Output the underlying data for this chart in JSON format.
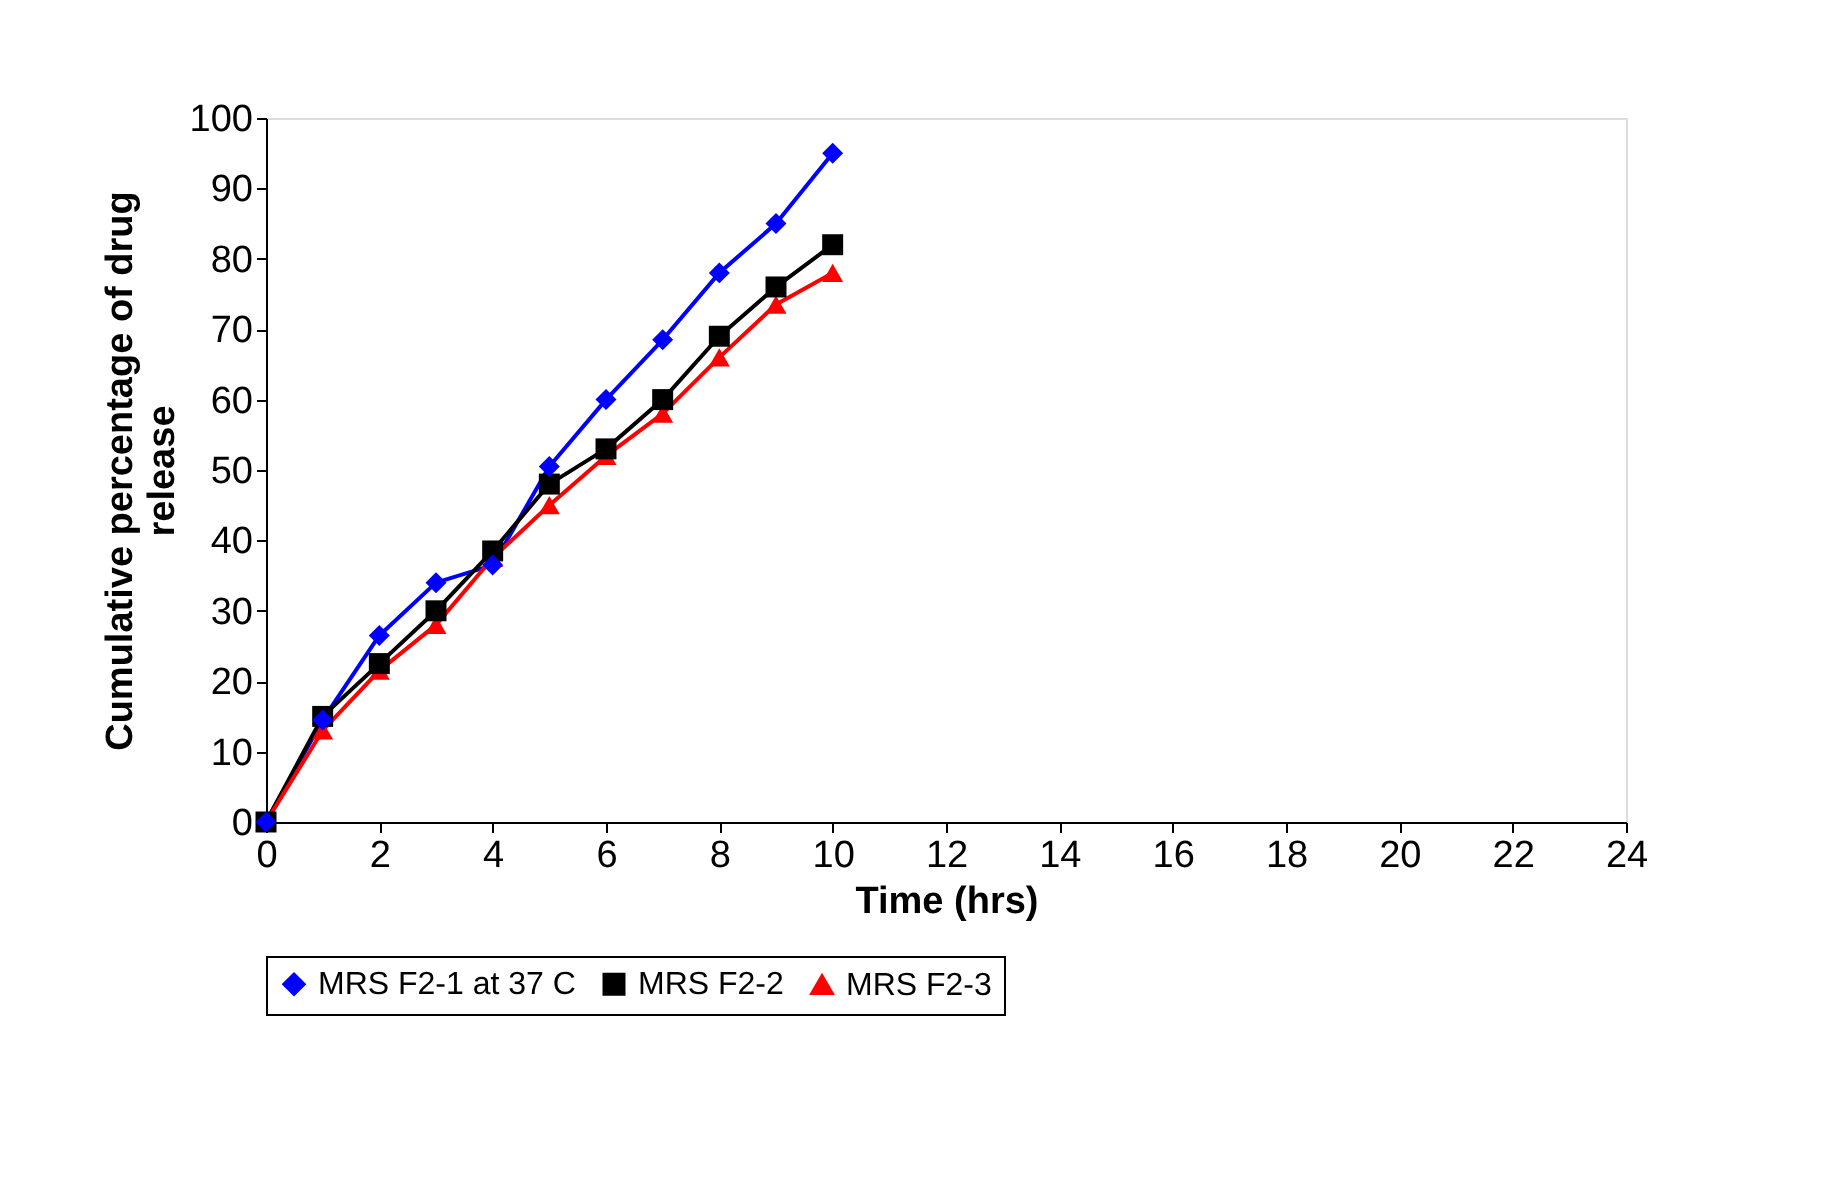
{
  "chart_data": {
    "type": "line",
    "xlabel": "Time (hrs)",
    "ylabel": "Cumulative percentage of drug release",
    "x": [
      0,
      1,
      2,
      3,
      4,
      5,
      6,
      7,
      8,
      9,
      10
    ],
    "xlim": [
      0,
      24
    ],
    "xticks": [
      0,
      2,
      4,
      6,
      8,
      10,
      12,
      14,
      16,
      18,
      20,
      22,
      24
    ],
    "ylim": [
      0,
      100
    ],
    "yticks": [
      0,
      10,
      20,
      30,
      40,
      50,
      60,
      70,
      80,
      90,
      100
    ],
    "grid": false,
    "legend": "bottom",
    "series": [
      {
        "name": "MRS F2-1 at 37 C",
        "color": "#0000ff",
        "marker": "diamond",
        "values": [
          0,
          14.5,
          26.5,
          34,
          36.5,
          50.5,
          60,
          68.5,
          78,
          85,
          95
        ]
      },
      {
        "name": "MRS F2-2",
        "color": "#000000",
        "marker": "square",
        "values": [
          0,
          15,
          22.5,
          30,
          38.5,
          48,
          53,
          60,
          69,
          76,
          82
        ]
      },
      {
        "name": "MRS F2-3",
        "color": "#ff0000",
        "marker": "triangle",
        "values": [
          0,
          13,
          21.5,
          28,
          37.5,
          45,
          52,
          58,
          66,
          73.5,
          78
        ]
      }
    ]
  }
}
